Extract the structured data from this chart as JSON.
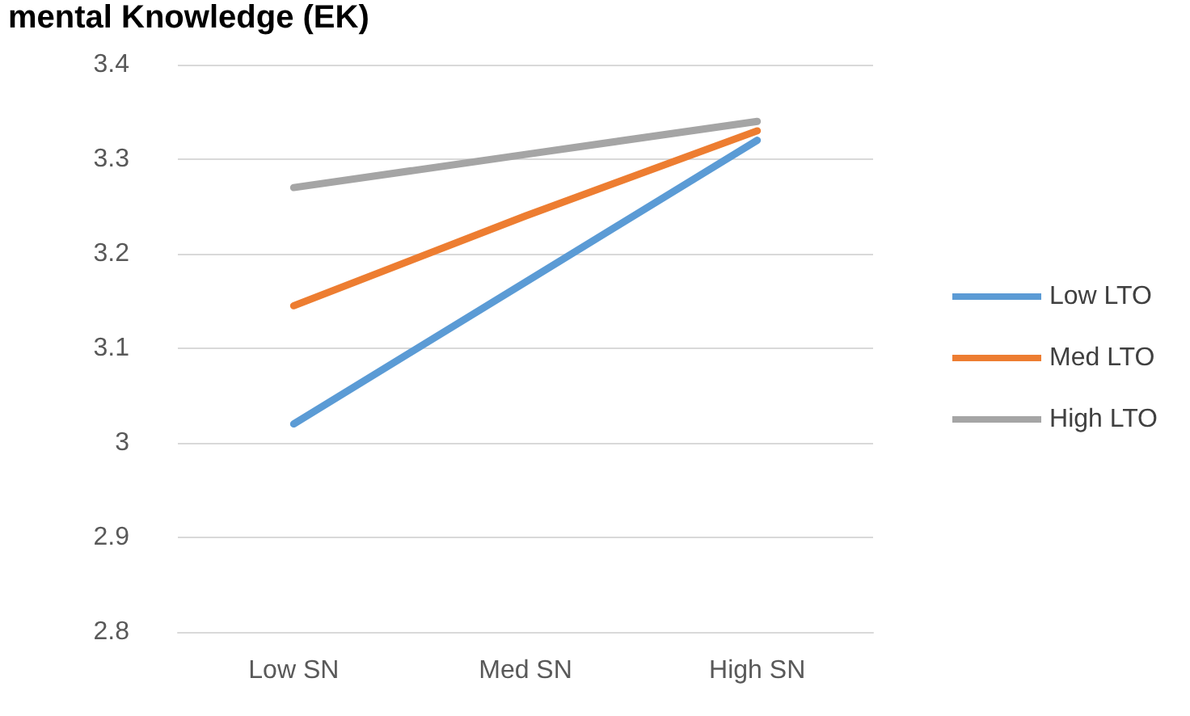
{
  "chart_data": {
    "type": "line",
    "title": "mental Knowledge (EK)",
    "categories": [
      "Low SN",
      "Med SN",
      "High SN"
    ],
    "series": [
      {
        "name": "Low LTO",
        "color": "#5b9bd5",
        "values": [
          3.02,
          3.17,
          3.32
        ]
      },
      {
        "name": "Med LTO",
        "color": "#ed7d31",
        "values": [
          3.145,
          3.24,
          3.33
        ]
      },
      {
        "name": "High LTO",
        "color": "#a5a5a5",
        "values": [
          3.27,
          3.305,
          3.34
        ]
      }
    ],
    "ylim": [
      2.8,
      3.4
    ],
    "yticks": [
      2.8,
      2.9,
      3,
      3.1,
      3.2,
      3.3,
      3.4
    ],
    "grid": "y",
    "legend": "right",
    "marker": "none",
    "line_style": "solid"
  }
}
